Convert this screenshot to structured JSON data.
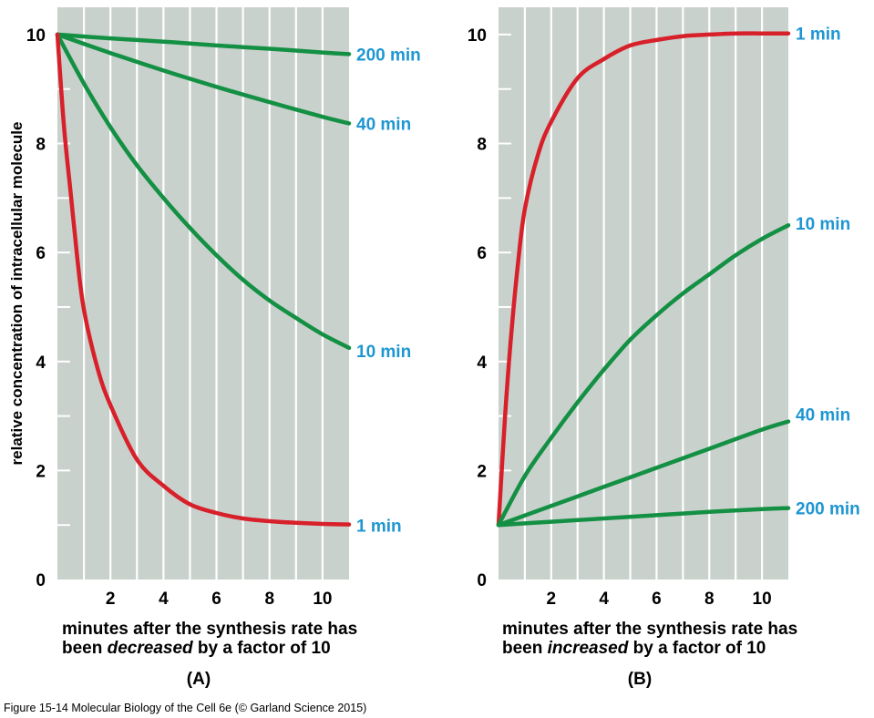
{
  "chart_data": [
    {
      "panel": "(A)",
      "type": "line",
      "ylabel": "relative concentration of intracellular molecule",
      "xlabel_line1": "minutes after the synthesis rate has",
      "xlabel_line2_before": "been ",
      "xlabel_line2_emph": "decreased",
      "xlabel_line2_after": " by a factor of 10",
      "xlim": [
        0,
        11
      ],
      "ylim": [
        0,
        10.5
      ],
      "xticks": [
        2,
        4,
        6,
        8,
        10
      ],
      "yticks": [
        0,
        2,
        4,
        6,
        8,
        10
      ],
      "grid": true,
      "series": [
        {
          "name": "200 min",
          "color": "#139043",
          "x": [
            0,
            2,
            4,
            6,
            8,
            10,
            11
          ],
          "y": [
            10,
            9.93,
            9.87,
            9.8,
            9.74,
            9.67,
            9.64
          ]
        },
        {
          "name": "40 min",
          "color": "#139043",
          "x": [
            0,
            2,
            4,
            6,
            8,
            10,
            11
          ],
          "y": [
            10,
            9.66,
            9.34,
            9.04,
            8.76,
            8.49,
            8.37
          ]
        },
        {
          "name": "10 min",
          "color": "#139043",
          "x": [
            0,
            1,
            2,
            3,
            4,
            5,
            6,
            7,
            8,
            9,
            10,
            11
          ],
          "y": [
            10,
            9.1,
            8.3,
            7.6,
            7.0,
            6.45,
            5.95,
            5.5,
            5.12,
            4.8,
            4.5,
            4.25
          ]
        },
        {
          "name": "1 min",
          "color": "#d7202a",
          "x": [
            0,
            0.25,
            0.5,
            0.75,
            1,
            1.5,
            2,
            3,
            4,
            5,
            6,
            7,
            8,
            9,
            10,
            11
          ],
          "y": [
            10,
            8.3,
            7.1,
            5.9,
            4.95,
            3.9,
            3.2,
            2.2,
            1.72,
            1.38,
            1.22,
            1.12,
            1.07,
            1.04,
            1.02,
            1.01
          ]
        }
      ]
    },
    {
      "panel": "(B)",
      "type": "line",
      "ylabel": "",
      "xlabel_line1": "minutes after the synthesis rate has",
      "xlabel_line2_before": "been ",
      "xlabel_line2_emph": "increased",
      "xlabel_line2_after": " by a factor of 10",
      "xlim": [
        0,
        11
      ],
      "ylim": [
        0,
        10.5
      ],
      "xticks": [
        2,
        4,
        6,
        8,
        10
      ],
      "yticks": [
        0,
        2,
        4,
        6,
        8,
        10
      ],
      "grid": true,
      "series": [
        {
          "name": "1 min",
          "color": "#d7202a",
          "x": [
            0,
            0.25,
            0.5,
            0.75,
            1,
            1.5,
            2,
            3,
            4,
            5,
            6,
            7,
            8,
            9,
            10,
            11
          ],
          "y": [
            1,
            3.0,
            4.6,
            5.85,
            6.8,
            7.8,
            8.4,
            9.2,
            9.55,
            9.8,
            9.9,
            9.97,
            10.0,
            10.02,
            10.02,
            10.02
          ]
        },
        {
          "name": "10 min",
          "color": "#139043",
          "x": [
            0,
            1,
            2,
            3,
            4,
            5,
            6,
            7,
            8,
            9,
            10,
            11
          ],
          "y": [
            1,
            1.9,
            2.6,
            3.25,
            3.85,
            4.4,
            4.85,
            5.25,
            5.6,
            5.95,
            6.25,
            6.5
          ]
        },
        {
          "name": "40 min",
          "color": "#139043",
          "x": [
            0,
            2,
            4,
            6,
            8,
            10,
            11
          ],
          "y": [
            1,
            1.35,
            1.7,
            2.05,
            2.4,
            2.75,
            2.9
          ]
        },
        {
          "name": "200 min",
          "color": "#139043",
          "x": [
            0,
            2,
            4,
            6,
            8,
            10,
            11
          ],
          "y": [
            1,
            1.06,
            1.12,
            1.18,
            1.24,
            1.29,
            1.31
          ]
        }
      ]
    }
  ],
  "caption": "Figure 15-14  Molecular Biology of the Cell 6e (© Garland Science 2015)"
}
